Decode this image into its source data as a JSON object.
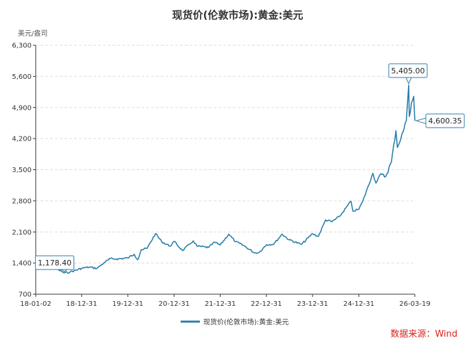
{
  "colors": {
    "series": "#2a7fa8",
    "grid": "#dddddd",
    "axis": "#333333",
    "source": "#e0201b"
  },
  "footer": {
    "source": "数据来源：Wind"
  },
  "chart_data": {
    "type": "line",
    "title": "现货价(伦敦市场):黄金:美元",
    "unit": "美元/盎司",
    "ylim": [
      700,
      6300
    ],
    "yticks": [
      "6,300",
      "5,600",
      "4,900",
      "4,200",
      "3,500",
      "2,800",
      "2,100",
      "1,400",
      "700"
    ],
    "xlim": [
      "2018-01-02",
      "2026-03-19"
    ],
    "xtick_labels": [
      "18-01-02",
      "18-12-31",
      "19-12-31",
      "20-12-31",
      "21-12-31",
      "22-12-31",
      "23-12-31",
      "24-12-31",
      "26-03-19"
    ],
    "xtick_dates": [
      "2018-01-02",
      "2018-12-31",
      "2019-12-31",
      "2020-12-31",
      "2021-12-31",
      "2022-12-31",
      "2023-12-31",
      "2024-12-31",
      "2026-03-19"
    ],
    "grid": true,
    "legend": "bottom-center",
    "series": [
      {
        "name": "现货价(伦敦市场):黄金:美元",
        "x": [
          "2018-01-02",
          "2018-02-15",
          "2018-04-10",
          "2018-05-20",
          "2018-07-01",
          "2018-08-16",
          "2018-10-01",
          "2018-12-31",
          "2019-03-01",
          "2019-05-01",
          "2019-06-25",
          "2019-08-15",
          "2019-10-01",
          "2019-12-31",
          "2020-02-20",
          "2020-03-19",
          "2020-04-15",
          "2020-06-01",
          "2020-08-06",
          "2020-09-25",
          "2020-11-30",
          "2020-12-31",
          "2021-03-08",
          "2021-05-01",
          "2021-06-01",
          "2021-07-01",
          "2021-09-30",
          "2021-11-16",
          "2021-12-31",
          "2022-03-08",
          "2022-05-01",
          "2022-07-01",
          "2022-09-28",
          "2022-11-03",
          "2022-12-31",
          "2023-02-28",
          "2023-05-04",
          "2023-07-01",
          "2023-10-05",
          "2023-12-31",
          "2024-02-15",
          "2024-04-12",
          "2024-06-01",
          "2024-08-01",
          "2024-10-30",
          "2024-11-14",
          "2024-12-31",
          "2025-02-01",
          "2025-04-21",
          "2025-05-15",
          "2025-06-15",
          "2025-08-01",
          "2025-09-15",
          "2025-10-20",
          "2025-11-01",
          "2025-12-15",
          "2026-01-10",
          "2026-01-29",
          "2026-02-03",
          "2026-02-20",
          "2026-03-10",
          "2026-03-19"
        ],
        "y": [
          1313,
          1345,
          1338,
          1295,
          1250,
          1178.4,
          1200,
          1282,
          1310,
          1280,
          1405,
          1500,
          1490,
          1515,
          1600,
          1474,
          1700,
          1730,
          2064,
          1880,
          1780,
          1888,
          1680,
          1820,
          1900,
          1780,
          1750,
          1870,
          1806,
          2050,
          1880,
          1800,
          1630,
          1640,
          1812,
          1830,
          2050,
          1920,
          1820,
          2062,
          2000,
          2370,
          2330,
          2450,
          2790,
          2570,
          2610,
          2800,
          3420,
          3200,
          3380,
          3350,
          3680,
          4380,
          4000,
          4350,
          4600,
          5405,
          4700,
          5000,
          5150,
          4600.35
        ]
      }
    ],
    "annotations": [
      {
        "label": "1,178.40",
        "x": "2018-08-16",
        "y": 1178.4
      },
      {
        "label": "5,405.00",
        "x": "2026-01-29",
        "y": 5405
      },
      {
        "label": "4,600.35",
        "x": "2026-03-19",
        "y": 4600.35
      }
    ]
  }
}
